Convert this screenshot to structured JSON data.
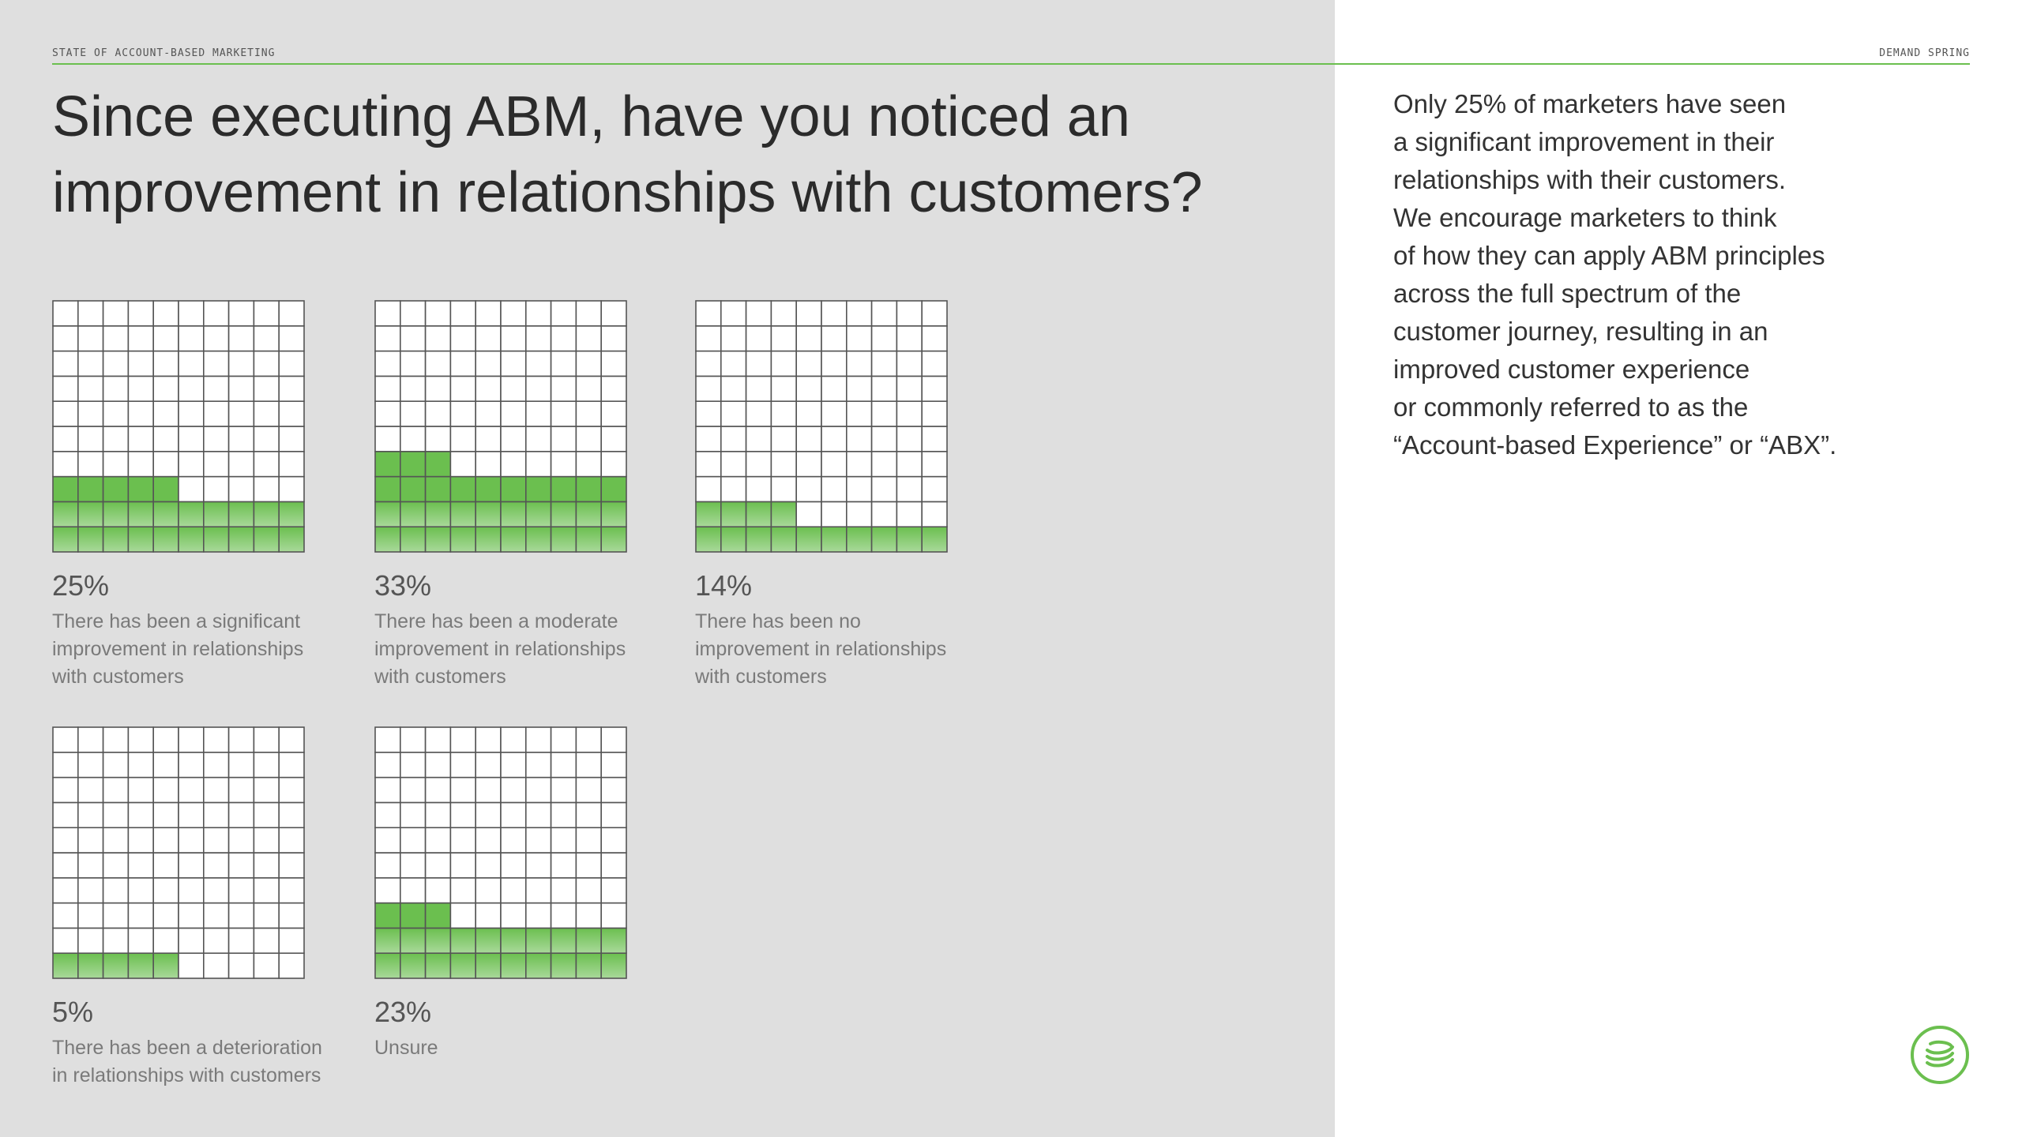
{
  "header": {
    "left": "STATE OF ACCOUNT-BASED MARKETING",
    "right": "DEMAND SPRING"
  },
  "title_line1": "Since executing ABM, have you noticed an",
  "title_line2": "improvement in relationships with customers?",
  "side_text": "Only 25% of marketers have seen\na significant improvement in their\nrelationships with their customers.\nWe encourage marketers to think\nof how they can apply ABM principles\nacross the full spectrum of the\ncustomer journey, resulting in an\nimproved customer experience\nor commonly referred to as the\n“Account-based Experience” or “ABX”.",
  "colors": {
    "accent": "#6bbf4f",
    "grid_line": "#555555",
    "left_background": "#dfdfdf"
  },
  "icons": {
    "logo": "demand-spring-logo-icon"
  },
  "chart_data": [
    {
      "type": "waffle",
      "value": 25,
      "label": "25%",
      "description": "There has been a significant\nimprovement in relationships\nwith customers"
    },
    {
      "type": "waffle",
      "value": 33,
      "label": "33%",
      "description": "There has been a moderate\nimprovement in relationships\nwith customers"
    },
    {
      "type": "waffle",
      "value": 14,
      "label": "14%",
      "description": "There has been no\nimprovement in relationships\nwith customers"
    },
    {
      "type": "waffle",
      "value": 5,
      "label": "5%",
      "description": "There has been a deterioration\nin relationships with customers"
    },
    {
      "type": "waffle",
      "value": 23,
      "label": "23%",
      "description": "Unsure"
    }
  ]
}
